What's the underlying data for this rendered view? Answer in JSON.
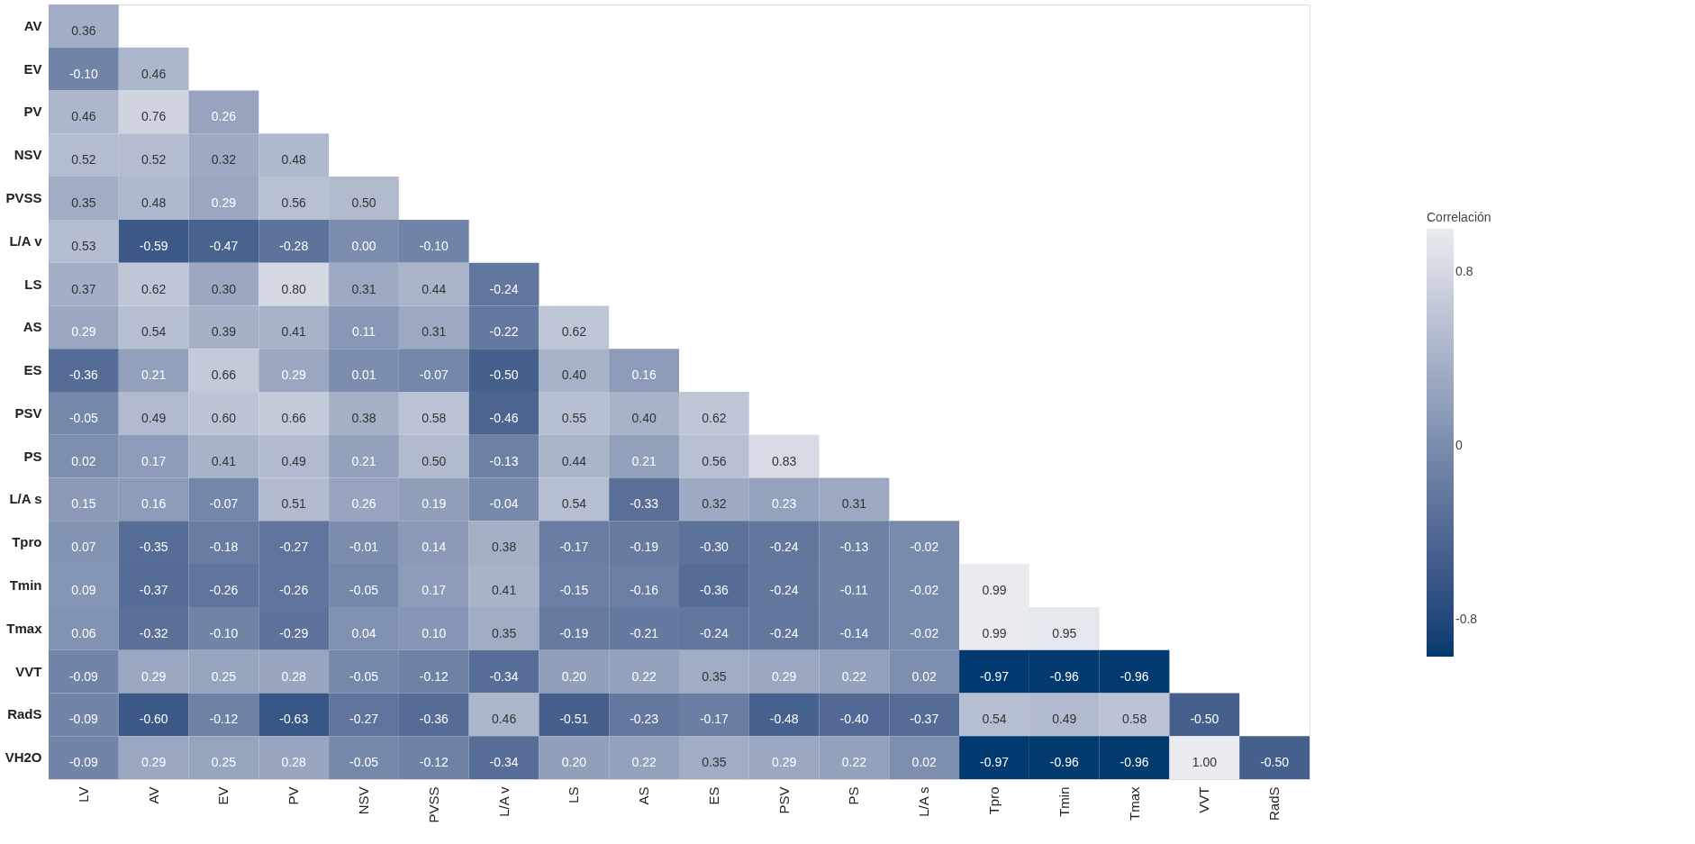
{
  "chart_data": {
    "type": "heatmap",
    "legend_title": "Correlación",
    "categories": [
      "LV",
      "AV",
      "EV",
      "PV",
      "NSV",
      "PVSS",
      "L/A v",
      "LS",
      "AS",
      "ES",
      "PSV",
      "PS",
      "L/A s",
      "Tpro",
      "Tmin",
      "Tmax",
      "VVT",
      "RadS"
    ],
    "y_categories": [
      "AV",
      "EV",
      "PV",
      "NSV",
      "PVSS",
      "L/A v",
      "LS",
      "AS",
      "ES",
      "PSV",
      "PS",
      "L/A s",
      "Tpro",
      "Tmin",
      "Tmax",
      "VVT",
      "RadS",
      "VH2O"
    ],
    "cells": [
      [
        0.36,
        null,
        null,
        null,
        null,
        null,
        null,
        null,
        null,
        null,
        null,
        null,
        null,
        null,
        null,
        null,
        null,
        null
      ],
      [
        -0.1,
        0.46,
        null,
        null,
        null,
        null,
        null,
        null,
        null,
        null,
        null,
        null,
        null,
        null,
        null,
        null,
        null,
        null
      ],
      [
        0.46,
        0.76,
        0.26,
        null,
        null,
        null,
        null,
        null,
        null,
        null,
        null,
        null,
        null,
        null,
        null,
        null,
        null,
        null
      ],
      [
        0.52,
        0.52,
        0.32,
        0.48,
        null,
        null,
        null,
        null,
        null,
        null,
        null,
        null,
        null,
        null,
        null,
        null,
        null,
        null
      ],
      [
        0.35,
        0.48,
        0.29,
        0.56,
        0.5,
        null,
        null,
        null,
        null,
        null,
        null,
        null,
        null,
        null,
        null,
        null,
        null,
        null
      ],
      [
        0.53,
        -0.59,
        -0.47,
        -0.28,
        0.0,
        -0.1,
        null,
        null,
        null,
        null,
        null,
        null,
        null,
        null,
        null,
        null,
        null,
        null
      ],
      [
        0.37,
        0.62,
        0.3,
        0.8,
        0.31,
        0.44,
        -0.24,
        null,
        null,
        null,
        null,
        null,
        null,
        null,
        null,
        null,
        null,
        null
      ],
      [
        0.29,
        0.54,
        0.39,
        0.41,
        0.11,
        0.31,
        -0.22,
        0.62,
        null,
        null,
        null,
        null,
        null,
        null,
        null,
        null,
        null,
        null
      ],
      [
        -0.36,
        0.21,
        0.66,
        0.29,
        0.01,
        -0.07,
        -0.5,
        0.4,
        0.16,
        null,
        null,
        null,
        null,
        null,
        null,
        null,
        null,
        null
      ],
      [
        -0.05,
        0.49,
        0.6,
        0.66,
        0.38,
        0.58,
        -0.46,
        0.55,
        0.4,
        0.62,
        null,
        null,
        null,
        null,
        null,
        null,
        null,
        null
      ],
      [
        0.02,
        0.17,
        0.41,
        0.49,
        0.21,
        0.5,
        -0.13,
        0.44,
        0.21,
        0.56,
        0.83,
        null,
        null,
        null,
        null,
        null,
        null,
        null
      ],
      [
        0.15,
        0.16,
        -0.07,
        0.51,
        0.26,
        0.19,
        -0.04,
        0.54,
        -0.33,
        0.32,
        0.23,
        0.31,
        null,
        null,
        null,
        null,
        null,
        null
      ],
      [
        0.07,
        -0.35,
        -0.18,
        -0.27,
        -0.01,
        0.14,
        0.38,
        -0.17,
        -0.19,
        -0.3,
        -0.24,
        -0.13,
        -0.02,
        null,
        null,
        null,
        null,
        null
      ],
      [
        0.09,
        -0.37,
        -0.26,
        -0.26,
        -0.05,
        0.17,
        0.41,
        -0.15,
        -0.16,
        -0.36,
        -0.24,
        -0.11,
        -0.02,
        0.99,
        null,
        null,
        null,
        null
      ],
      [
        0.06,
        -0.32,
        -0.1,
        -0.29,
        0.04,
        0.1,
        0.35,
        -0.19,
        -0.21,
        -0.24,
        -0.24,
        -0.14,
        -0.02,
        0.99,
        0.95,
        null,
        null,
        null
      ],
      [
        -0.09,
        0.29,
        0.25,
        0.28,
        -0.05,
        -0.12,
        -0.34,
        0.2,
        0.22,
        0.35,
        0.29,
        0.22,
        0.02,
        -0.97,
        -0.96,
        -0.96,
        null,
        null
      ],
      [
        -0.09,
        -0.6,
        -0.12,
        -0.63,
        -0.27,
        -0.36,
        0.46,
        -0.51,
        -0.23,
        -0.17,
        -0.48,
        -0.4,
        -0.37,
        0.54,
        0.49,
        0.58,
        -0.5,
        null
      ],
      [
        -0.09,
        0.29,
        0.25,
        0.28,
        -0.05,
        -0.12,
        -0.34,
        0.2,
        0.22,
        0.35,
        0.29,
        0.22,
        0.02,
        -0.97,
        -0.96,
        -0.96,
        1.0,
        -0.5
      ]
    ],
    "clim": [
      -0.97,
      1.0
    ],
    "cticks": [
      -0.8,
      0,
      0.8
    ],
    "colors": [
      "#003a70",
      "#eaecf0"
    ],
    "cell_labels": [
      [
        "0.36",
        null,
        null,
        null,
        null,
        null,
        null,
        null,
        null,
        null,
        null,
        null,
        null,
        null,
        null,
        null,
        null,
        null
      ],
      [
        "-0.10",
        "0.46",
        null,
        null,
        null,
        null,
        null,
        null,
        null,
        null,
        null,
        null,
        null,
        null,
        null,
        null,
        null,
        null
      ],
      [
        "0.46",
        "0.76",
        "0.26",
        null,
        null,
        null,
        null,
        null,
        null,
        null,
        null,
        null,
        null,
        null,
        null,
        null,
        null,
        null
      ],
      [
        "0.52",
        "0.52",
        "0.32",
        "0.48",
        null,
        null,
        null,
        null,
        null,
        null,
        null,
        null,
        null,
        null,
        null,
        null,
        null,
        null
      ],
      [
        "0.35",
        "0.48",
        "0.29",
        "0.56",
        "0.50",
        null,
        null,
        null,
        null,
        null,
        null,
        null,
        null,
        null,
        null,
        null,
        null,
        null
      ],
      [
        "0.53",
        "-0.59",
        "-0.47",
        "-0.28",
        "0.00",
        "-0.10",
        null,
        null,
        null,
        null,
        null,
        null,
        null,
        null,
        null,
        null,
        null,
        null
      ],
      [
        "0.37",
        "0.62",
        "0.30",
        "0.80",
        "0.31",
        "0.44",
        "-0.24",
        null,
        null,
        null,
        null,
        null,
        null,
        null,
        null,
        null,
        null,
        null
      ],
      [
        "0.29",
        "0.54",
        "0.39",
        "0.41",
        "0.11",
        "0.31",
        "-0.22",
        "0.62",
        null,
        null,
        null,
        null,
        null,
        null,
        null,
        null,
        null,
        null
      ],
      [
        "-0.36",
        "0.21",
        "0.66",
        "0.29",
        "0.01",
        "-0.07",
        "-0.50",
        "0.40",
        "0.16",
        null,
        null,
        null,
        null,
        null,
        null,
        null,
        null,
        null
      ],
      [
        "-0.05",
        "0.49",
        "0.60",
        "0.66",
        "0.38",
        "0.58",
        "-0.46",
        "0.55",
        "0.40",
        "0.62",
        null,
        null,
        null,
        null,
        null,
        null,
        null,
        null
      ],
      [
        "0.02",
        "0.17",
        "0.41",
        "0.49",
        "0.21",
        "0.50",
        "-0.13",
        "0.44",
        "0.21",
        "0.56",
        "0.83",
        null,
        null,
        null,
        null,
        null,
        null,
        null
      ],
      [
        "0.15",
        "0.16",
        "-0.07",
        "0.51",
        "0.26",
        "0.19",
        "-0.04",
        "0.54",
        "-0.33",
        "0.32",
        "0.23",
        "0.31",
        null,
        null,
        null,
        null,
        null,
        null
      ],
      [
        "0.07",
        "-0.35",
        "-0.18",
        "-0.27",
        "-0.01",
        "0.14",
        "0.38",
        "-0.17",
        "-0.19",
        "-0.30",
        "-0.24",
        "-0.13",
        "-0.02",
        null,
        null,
        null,
        null,
        null
      ],
      [
        "0.09",
        "-0.37",
        "-0.26",
        "-0.26",
        "-0.05",
        "0.17",
        "0.41",
        "-0.15",
        "-0.16",
        "-0.36",
        "-0.24",
        "-0.11",
        "-0.02",
        "0.99",
        null,
        null,
        null,
        null
      ],
      [
        "0.06",
        "-0.32",
        "-0.10",
        "-0.29",
        "0.04",
        "0.10",
        "0.35",
        "-0.19",
        "-0.21",
        "-0.24",
        "-0.24",
        "-0.14",
        "-0.02",
        "0.99",
        "0.95",
        null,
        null,
        null
      ],
      [
        "-0.09",
        "0.29",
        "0.25",
        "0.28",
        "-0.05",
        "-0.12",
        "-0.34",
        "0.20",
        "0.22",
        "0.35",
        "0.29",
        "0.22",
        "0.02",
        "-0.97",
        "-0.96",
        "-0.96",
        null,
        null
      ],
      [
        "-0.09",
        "-0.60",
        "-0.12",
        "-0.63",
        "-0.27",
        "-0.36",
        "0.46",
        "-0.51",
        "-0.23",
        "-0.17",
        "-0.48",
        "-0.40",
        "-0.37",
        "0.54",
        "0.49",
        "0.58",
        "-0.50",
        null
      ],
      [
        "-0.09",
        "0.29",
        "0.25",
        "0.28",
        "-0.05",
        "-0.12",
        "-0.34",
        "0.20",
        "0.22",
        "0.35",
        "0.29",
        "0.22",
        "0.02",
        "-0.97",
        "-0.96",
        "-0.96",
        "1.00",
        "-0.50"
      ]
    ],
    "grid": false
  }
}
